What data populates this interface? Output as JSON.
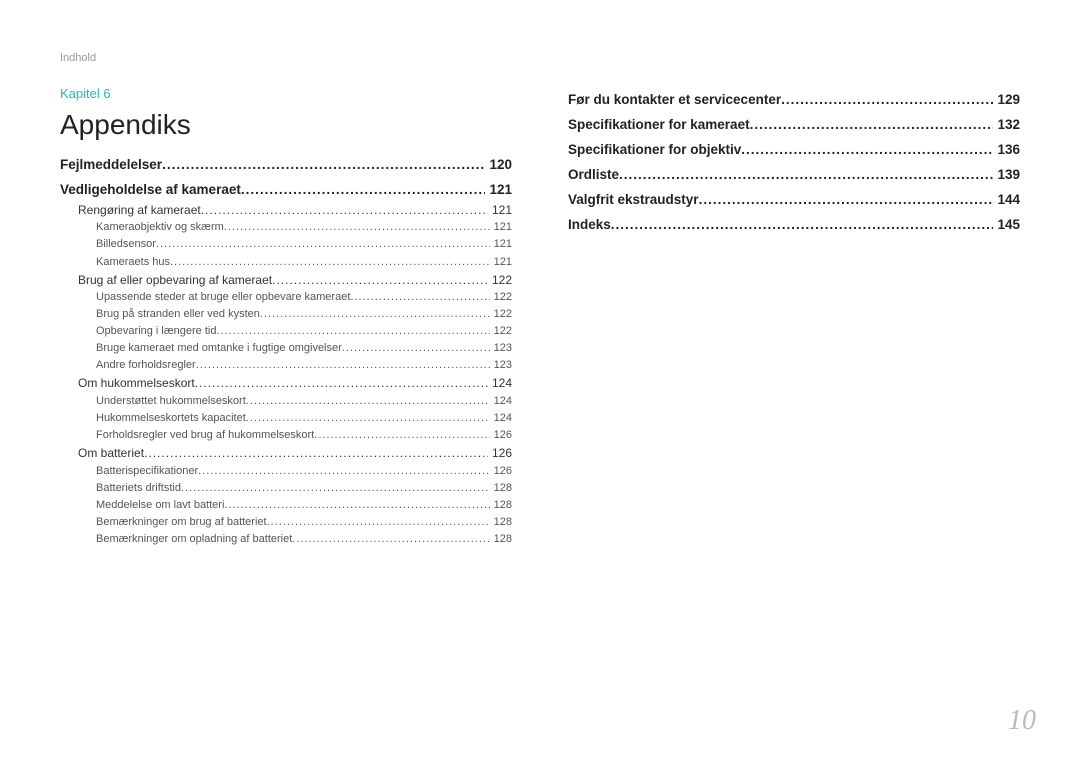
{
  "header": {
    "label": "Indhold"
  },
  "chapter": {
    "label": "Kapitel 6"
  },
  "section": {
    "title": "Appendiks"
  },
  "colors": {
    "accent": "#2fb5a8",
    "text_primary": "#222222",
    "text_secondary": "#555555",
    "text_muted": "#999999",
    "pagenum": "#bbbbbb",
    "background": "#ffffff"
  },
  "typography": {
    "title_size_pt": 21,
    "lvl0_size_pt": 10,
    "lvl1_size_pt": 9,
    "lvl2_size_pt": 8,
    "pagenum_size_pt": 21,
    "pagenum_family": "serif-italic"
  },
  "page_number": "10",
  "left_entries": [
    {
      "level": 0,
      "label": "Fejlmeddelelser",
      "page": "120"
    },
    {
      "level": 0,
      "label": "Vedligeholdelse af kameraet",
      "page": "121"
    },
    {
      "level": 1,
      "label": "Rengøring af kameraet",
      "page": "121"
    },
    {
      "level": 2,
      "label": "Kameraobjektiv og skærm",
      "page": "121"
    },
    {
      "level": 2,
      "label": "Billedsensor",
      "page": "121"
    },
    {
      "level": 2,
      "label": "Kameraets hus",
      "page": "121"
    },
    {
      "level": 1,
      "label": "Brug af eller opbevaring af kameraet",
      "page": "122"
    },
    {
      "level": 2,
      "label": "Upassende steder at bruge eller opbevare kameraet",
      "page": "122"
    },
    {
      "level": 2,
      "label": "Brug på stranden eller ved kysten",
      "page": "122"
    },
    {
      "level": 2,
      "label": "Opbevaring i længere tid",
      "page": "122"
    },
    {
      "level": 2,
      "label": "Bruge kameraet med omtanke i fugtige omgivelser",
      "page": "123"
    },
    {
      "level": 2,
      "label": "Andre forholdsregler",
      "page": "123"
    },
    {
      "level": 1,
      "label": "Om hukommelseskort",
      "page": "124"
    },
    {
      "level": 2,
      "label": "Understøttet hukommelseskort",
      "page": "124"
    },
    {
      "level": 2,
      "label": "Hukommelseskortets kapacitet",
      "page": "124"
    },
    {
      "level": 2,
      "label": "Forholdsregler ved brug af hukommelseskort",
      "page": "126"
    },
    {
      "level": 1,
      "label": "Om batteriet",
      "page": "126"
    },
    {
      "level": 2,
      "label": "Batterispecifikationer",
      "page": "126"
    },
    {
      "level": 2,
      "label": "Batteriets driftstid",
      "page": "128"
    },
    {
      "level": 2,
      "label": "Meddelelse om lavt batteri",
      "page": "128"
    },
    {
      "level": 2,
      "label": "Bemærkninger om brug af batteriet",
      "page": "128"
    },
    {
      "level": 2,
      "label": "Bemærkninger om opladning af batteriet",
      "page": "128"
    }
  ],
  "right_entries": [
    {
      "level": 0,
      "label": "Før du kontakter et servicecenter",
      "page": "129"
    },
    {
      "level": 0,
      "label": "Specifikationer for kameraet",
      "page": "132"
    },
    {
      "level": 0,
      "label": "Specifikationer for objektiv",
      "page": "136"
    },
    {
      "level": 0,
      "label": "Ordliste",
      "page": "139"
    },
    {
      "level": 0,
      "label": "Valgfrit ekstraudstyr",
      "page": "144"
    },
    {
      "level": 0,
      "label": "Indeks",
      "page": "145"
    }
  ]
}
